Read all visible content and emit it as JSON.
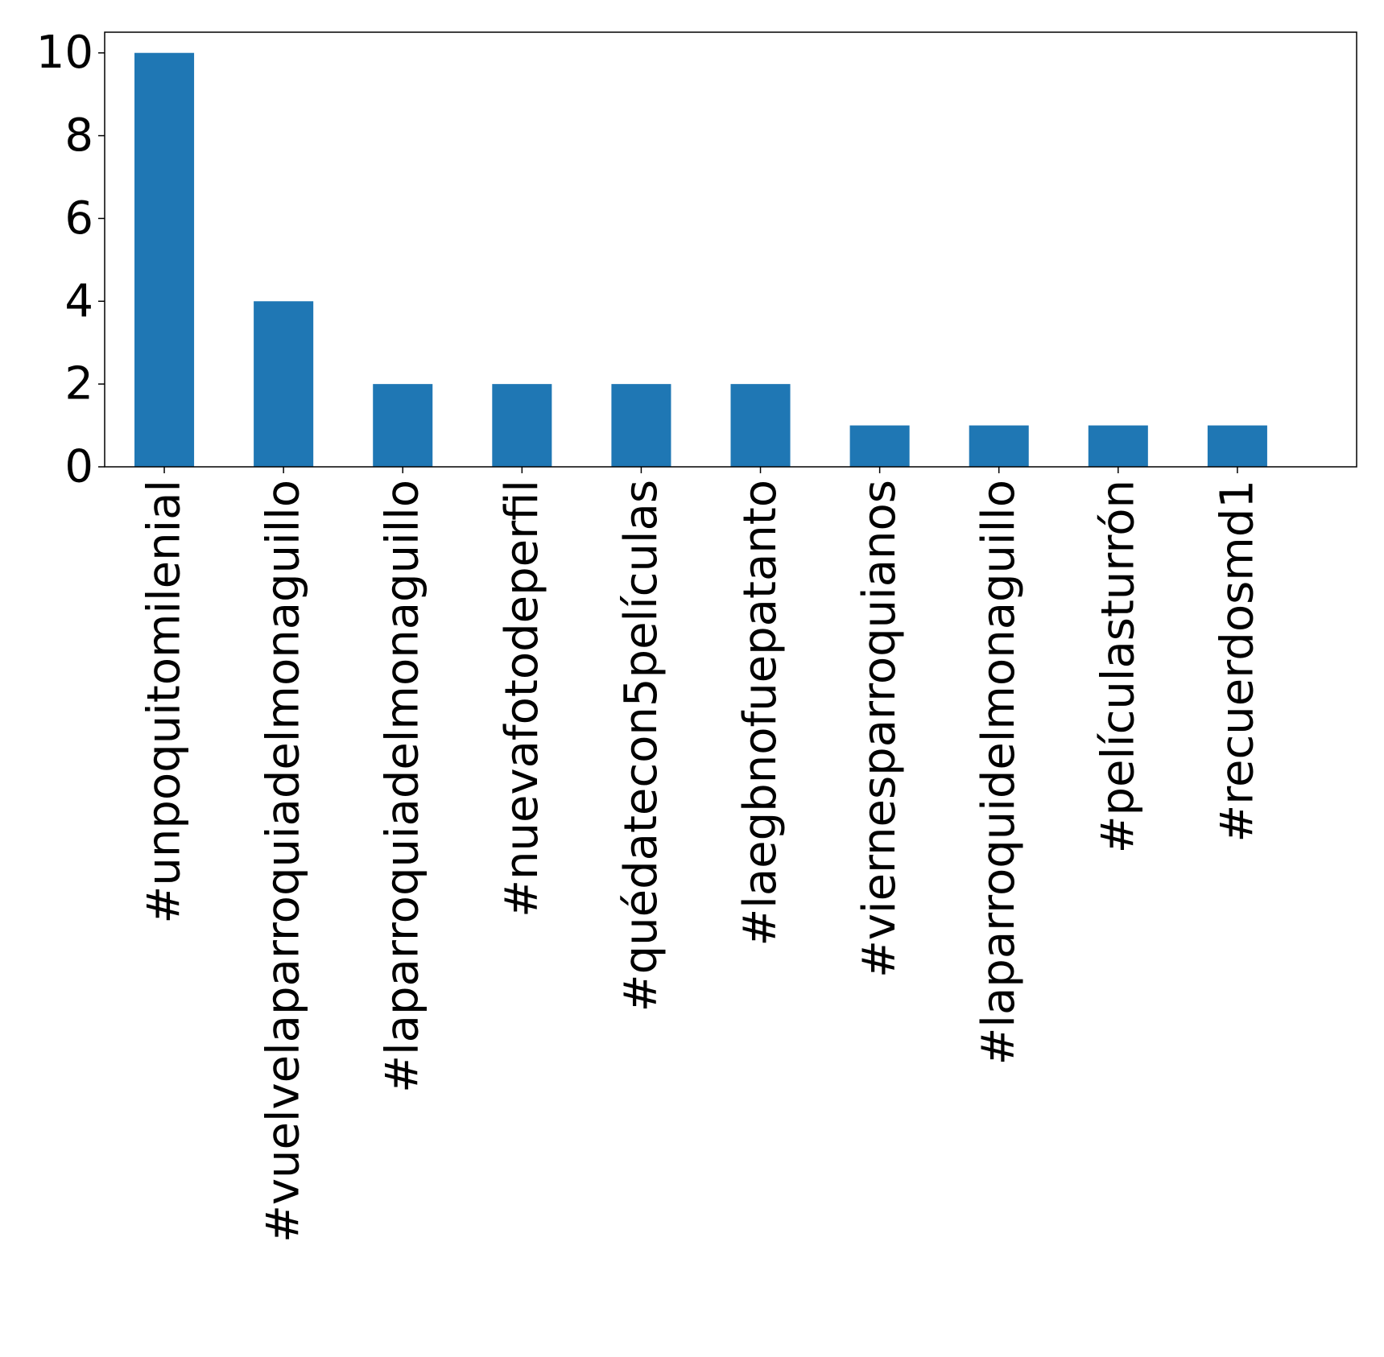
{
  "chart_data": {
    "type": "bar",
    "title": "",
    "xlabel": "",
    "ylabel": "",
    "categories": [
      "#unpoquitomilenial",
      "#vuelvelaparroquiadelmonaguillo",
      "#laparroquiadelmonaguillo",
      "#nuevafotodeperfil",
      "#quédatecon5películas",
      "#laegbnofuepatanto",
      "#viernesparroquianos",
      "#laparroquidelmonaguillo",
      "#películasturrón",
      "#recuerdosmd1"
    ],
    "values": [
      10,
      4,
      2,
      2,
      2,
      2,
      1,
      1,
      1,
      1
    ],
    "ylim": [
      0,
      10.5
    ],
    "yticks": [
      "0",
      "2",
      "4",
      "6",
      "8",
      "10"
    ],
    "grid": false,
    "legend": "none",
    "bar_color": "#1f77b4",
    "axis_color": "#000000"
  }
}
